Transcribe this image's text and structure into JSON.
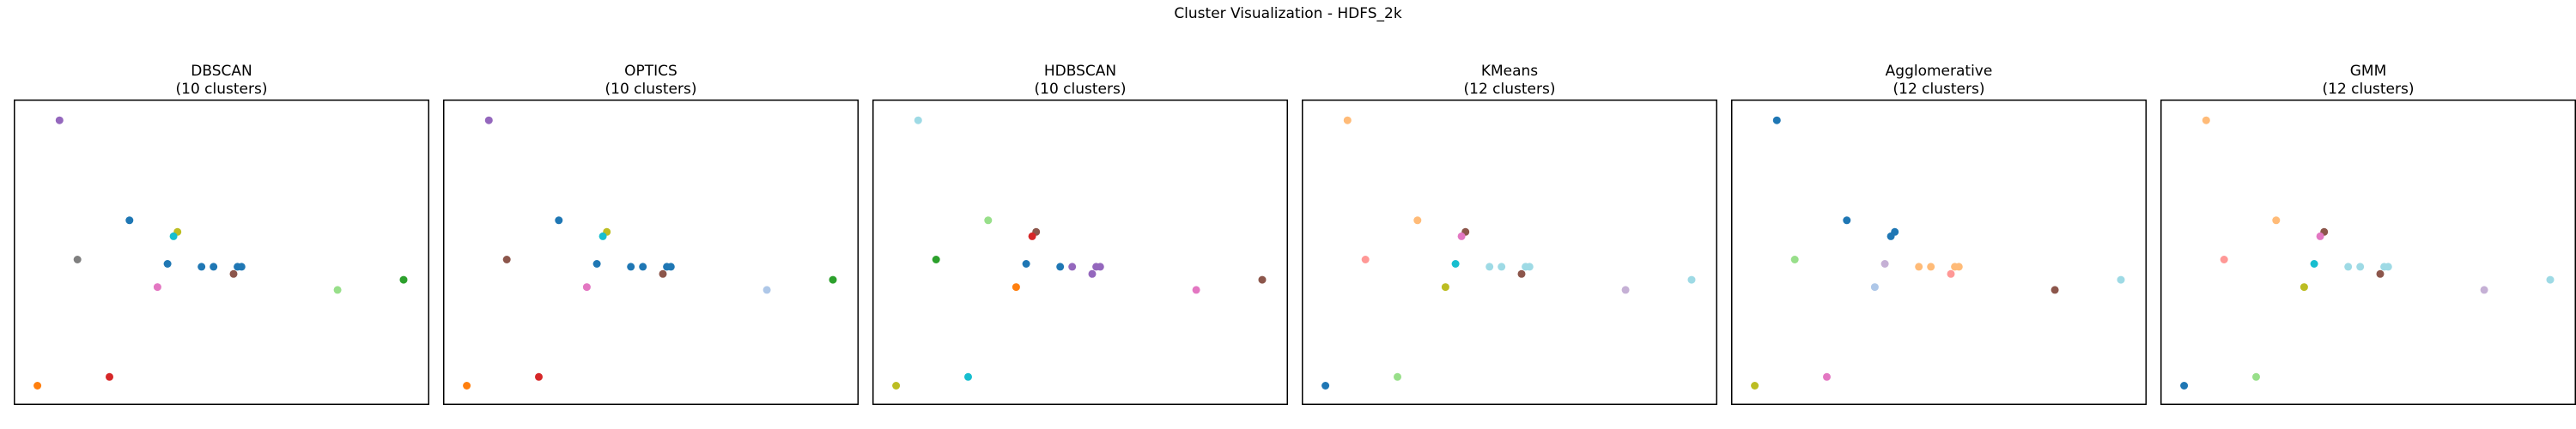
{
  "title": "Cluster Visualization - HDFS_2k",
  "chart_data": [
    {
      "type": "scatter",
      "title": "DBSCAN",
      "subtitle": "(10 clusters)",
      "xlim": [
        0,
        100
      ],
      "ylim": [
        0,
        100
      ],
      "grid": false,
      "points": [
        {
          "x": 9.5,
          "y": 95.5,
          "color": "#9467bd"
        },
        {
          "x": 27,
          "y": 61,
          "color": "#1f77b4"
        },
        {
          "x": 39,
          "y": 57,
          "color": "#bcbd22"
        },
        {
          "x": 38,
          "y": 55.5,
          "color": "#17becf"
        },
        {
          "x": 14,
          "y": 47.5,
          "color": "#7f7f7f"
        },
        {
          "x": 36.5,
          "y": 46,
          "color": "#1f77b4"
        },
        {
          "x": 45,
          "y": 45,
          "color": "#1f77b4"
        },
        {
          "x": 48,
          "y": 45,
          "color": "#1f77b4"
        },
        {
          "x": 54,
          "y": 45,
          "color": "#1f77b4"
        },
        {
          "x": 55,
          "y": 45,
          "color": "#1f77b4"
        },
        {
          "x": 53,
          "y": 42.5,
          "color": "#8c564b"
        },
        {
          "x": 34,
          "y": 38,
          "color": "#e377c2"
        },
        {
          "x": 79,
          "y": 37,
          "color": "#98df8a"
        },
        {
          "x": 95.5,
          "y": 40.5,
          "color": "#2ca02c"
        },
        {
          "x": 4,
          "y": 4,
          "color": "#ff7f0e"
        },
        {
          "x": 22,
          "y": 7,
          "color": "#d62728"
        }
      ]
    },
    {
      "type": "scatter",
      "title": "OPTICS",
      "subtitle": "(10 clusters)",
      "xlim": [
        0,
        100
      ],
      "ylim": [
        0,
        100
      ],
      "grid": false,
      "points": [
        {
          "x": 9.5,
          "y": 95.5,
          "color": "#9467bd"
        },
        {
          "x": 27,
          "y": 61,
          "color": "#1f77b4"
        },
        {
          "x": 39,
          "y": 57,
          "color": "#bcbd22"
        },
        {
          "x": 38,
          "y": 55.5,
          "color": "#17becf"
        },
        {
          "x": 14,
          "y": 47.5,
          "color": "#8c564b"
        },
        {
          "x": 36.5,
          "y": 46,
          "color": "#1f77b4"
        },
        {
          "x": 45,
          "y": 45,
          "color": "#1f77b4"
        },
        {
          "x": 48,
          "y": 45,
          "color": "#1f77b4"
        },
        {
          "x": 54,
          "y": 45,
          "color": "#1f77b4"
        },
        {
          "x": 55,
          "y": 45,
          "color": "#1f77b4"
        },
        {
          "x": 53,
          "y": 42.5,
          "color": "#8c564b"
        },
        {
          "x": 34,
          "y": 38,
          "color": "#e377c2"
        },
        {
          "x": 79,
          "y": 37,
          "color": "#aec7e8"
        },
        {
          "x": 95.5,
          "y": 40.5,
          "color": "#2ca02c"
        },
        {
          "x": 4,
          "y": 4,
          "color": "#ff7f0e"
        },
        {
          "x": 22,
          "y": 7,
          "color": "#d62728"
        }
      ]
    },
    {
      "type": "scatter",
      "title": "HDBSCAN",
      "subtitle": "(10 clusters)",
      "xlim": [
        0,
        100
      ],
      "ylim": [
        0,
        100
      ],
      "grid": false,
      "points": [
        {
          "x": 9.5,
          "y": 95.5,
          "color": "#9edae5"
        },
        {
          "x": 27,
          "y": 61,
          "color": "#98df8a"
        },
        {
          "x": 39,
          "y": 57,
          "color": "#8c564b"
        },
        {
          "x": 38,
          "y": 55.5,
          "color": "#d62728"
        },
        {
          "x": 14,
          "y": 47.5,
          "color": "#2ca02c"
        },
        {
          "x": 36.5,
          "y": 46,
          "color": "#1f77b4"
        },
        {
          "x": 45,
          "y": 45,
          "color": "#1f77b4"
        },
        {
          "x": 48,
          "y": 45,
          "color": "#9467bd"
        },
        {
          "x": 54,
          "y": 45,
          "color": "#9467bd"
        },
        {
          "x": 55,
          "y": 45,
          "color": "#9467bd"
        },
        {
          "x": 53,
          "y": 42.5,
          "color": "#9467bd"
        },
        {
          "x": 34,
          "y": 38,
          "color": "#ff7f0e"
        },
        {
          "x": 79,
          "y": 37,
          "color": "#e377c2"
        },
        {
          "x": 95.5,
          "y": 40.5,
          "color": "#8c564b"
        },
        {
          "x": 4,
          "y": 4,
          "color": "#bcbd22"
        },
        {
          "x": 22,
          "y": 7,
          "color": "#17becf"
        }
      ]
    },
    {
      "type": "scatter",
      "title": "KMeans",
      "subtitle": "(12 clusters)",
      "xlim": [
        0,
        100
      ],
      "ylim": [
        0,
        100
      ],
      "grid": false,
      "points": [
        {
          "x": 9.5,
          "y": 95.5,
          "color": "#ffbb78"
        },
        {
          "x": 27,
          "y": 61,
          "color": "#ffbb78"
        },
        {
          "x": 39,
          "y": 57,
          "color": "#8c564b"
        },
        {
          "x": 38,
          "y": 55.5,
          "color": "#e377c2"
        },
        {
          "x": 14,
          "y": 47.5,
          "color": "#ff9896"
        },
        {
          "x": 36.5,
          "y": 46,
          "color": "#17becf"
        },
        {
          "x": 45,
          "y": 45,
          "color": "#9edae5"
        },
        {
          "x": 48,
          "y": 45,
          "color": "#9edae5"
        },
        {
          "x": 54,
          "y": 45,
          "color": "#9edae5"
        },
        {
          "x": 55,
          "y": 45,
          "color": "#9edae5"
        },
        {
          "x": 53,
          "y": 42.5,
          "color": "#8c564b"
        },
        {
          "x": 34,
          "y": 38,
          "color": "#bcbd22"
        },
        {
          "x": 79,
          "y": 37,
          "color": "#c5b0d5"
        },
        {
          "x": 95.5,
          "y": 40.5,
          "color": "#9edae5"
        },
        {
          "x": 4,
          "y": 4,
          "color": "#1f77b4"
        },
        {
          "x": 22,
          "y": 7,
          "color": "#98df8a"
        }
      ]
    },
    {
      "type": "scatter",
      "title": "Agglomerative",
      "subtitle": "(12 clusters)",
      "xlim": [
        0,
        100
      ],
      "ylim": [
        0,
        100
      ],
      "grid": false,
      "points": [
        {
          "x": 9.5,
          "y": 95.5,
          "color": "#1f77b4"
        },
        {
          "x": 27,
          "y": 61,
          "color": "#1f77b4"
        },
        {
          "x": 39,
          "y": 57,
          "color": "#1f77b4"
        },
        {
          "x": 38,
          "y": 55.5,
          "color": "#1f77b4"
        },
        {
          "x": 14,
          "y": 47.5,
          "color": "#98df8a"
        },
        {
          "x": 36.5,
          "y": 46,
          "color": "#c5b0d5"
        },
        {
          "x": 45,
          "y": 45,
          "color": "#ffbb78"
        },
        {
          "x": 48,
          "y": 45,
          "color": "#ffbb78"
        },
        {
          "x": 54,
          "y": 45,
          "color": "#ffbb78"
        },
        {
          "x": 55,
          "y": 45,
          "color": "#ffbb78"
        },
        {
          "x": 53,
          "y": 42.5,
          "color": "#ff9896"
        },
        {
          "x": 34,
          "y": 38,
          "color": "#aec7e8"
        },
        {
          "x": 79,
          "y": 37,
          "color": "#8c564b"
        },
        {
          "x": 95.5,
          "y": 40.5,
          "color": "#9edae5"
        },
        {
          "x": 4,
          "y": 4,
          "color": "#bcbd22"
        },
        {
          "x": 22,
          "y": 7,
          "color": "#e377c2"
        }
      ]
    },
    {
      "type": "scatter",
      "title": "GMM",
      "subtitle": "(12 clusters)",
      "xlim": [
        0,
        100
      ],
      "ylim": [
        0,
        100
      ],
      "grid": false,
      "points": [
        {
          "x": 9.5,
          "y": 95.5,
          "color": "#ffbb78"
        },
        {
          "x": 27,
          "y": 61,
          "color": "#ffbb78"
        },
        {
          "x": 39,
          "y": 57,
          "color": "#8c564b"
        },
        {
          "x": 38,
          "y": 55.5,
          "color": "#e377c2"
        },
        {
          "x": 14,
          "y": 47.5,
          "color": "#ff9896"
        },
        {
          "x": 36.5,
          "y": 46,
          "color": "#17becf"
        },
        {
          "x": 45,
          "y": 45,
          "color": "#9edae5"
        },
        {
          "x": 48,
          "y": 45,
          "color": "#9edae5"
        },
        {
          "x": 54,
          "y": 45,
          "color": "#9edae5"
        },
        {
          "x": 55,
          "y": 45,
          "color": "#9edae5"
        },
        {
          "x": 53,
          "y": 42.5,
          "color": "#8c564b"
        },
        {
          "x": 34,
          "y": 38,
          "color": "#bcbd22"
        },
        {
          "x": 79,
          "y": 37,
          "color": "#c5b0d5"
        },
        {
          "x": 95.5,
          "y": 40.5,
          "color": "#9edae5"
        },
        {
          "x": 4,
          "y": 4,
          "color": "#1f77b4"
        },
        {
          "x": 22,
          "y": 7,
          "color": "#98df8a"
        }
      ]
    }
  ]
}
